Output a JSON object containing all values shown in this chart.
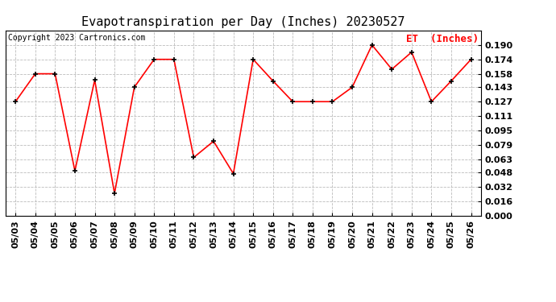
{
  "title": "Evapotranspiration per Day (Inches) 20230527",
  "copyright": "Copyright 2023 Cartronics.com",
  "legend_label": "ET  (Inches)",
  "dates": [
    "05/03",
    "05/04",
    "05/05",
    "05/06",
    "05/07",
    "05/08",
    "05/09",
    "05/10",
    "05/11",
    "05/12",
    "05/13",
    "05/14",
    "05/15",
    "05/16",
    "05/17",
    "05/18",
    "05/19",
    "05/20",
    "05/21",
    "05/22",
    "05/23",
    "05/24",
    "05/25",
    "05/26"
  ],
  "values": [
    0.127,
    0.158,
    0.158,
    0.05,
    0.151,
    0.025,
    0.143,
    0.174,
    0.174,
    0.065,
    0.083,
    0.047,
    0.174,
    0.15,
    0.127,
    0.127,
    0.127,
    0.143,
    0.19,
    0.163,
    0.182,
    0.127,
    0.15,
    0.174
  ],
  "line_color": "red",
  "marker_color": "black",
  "marker": "+",
  "ylim": [
    0.0,
    0.2064
  ],
  "yticks": [
    0.0,
    0.016,
    0.032,
    0.048,
    0.063,
    0.079,
    0.095,
    0.111,
    0.127,
    0.143,
    0.158,
    0.174,
    0.19
  ],
  "bg_color": "white",
  "grid_color": "#bbbbbb",
  "title_fontsize": 11,
  "copyright_fontsize": 7,
  "legend_fontsize": 9,
  "tick_fontsize": 8,
  "ytick_fontsize": 8
}
